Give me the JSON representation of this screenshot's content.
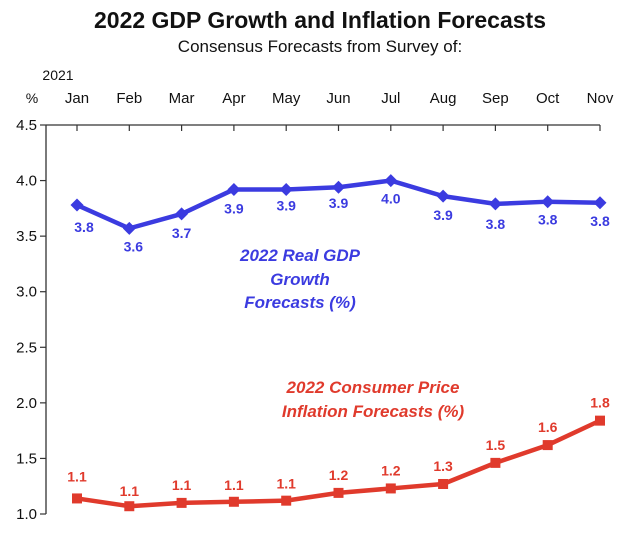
{
  "chart_data": {
    "type": "line",
    "title": "2022 GDP Growth and Inflation Forecasts",
    "subtitle": "Consensus Forecasts from Survey of:",
    "year_label": "2021",
    "ylabel": "%",
    "categories": [
      "Jan",
      "Feb",
      "Mar",
      "Apr",
      "May",
      "Jun",
      "Jul",
      "Aug",
      "Sep",
      "Oct",
      "Nov"
    ],
    "ylim": [
      1.0,
      4.5
    ],
    "yticks": [
      "1.0",
      "1.5",
      "2.0",
      "2.5",
      "3.0",
      "3.5",
      "4.0",
      "4.5"
    ],
    "grid": false,
    "series": [
      {
        "name": "2022 Real GDP Growth Forecasts (%)",
        "name_lines": [
          "2022 Real GDP",
          "Growth",
          "Forecasts  (%)"
        ],
        "color": "#3b3be0",
        "marker": "diamond",
        "values": [
          3.78,
          3.57,
          3.7,
          3.92,
          3.92,
          3.94,
          4.0,
          3.86,
          3.79,
          3.81,
          3.8
        ],
        "labels": [
          "3.8",
          "3.6",
          "3.7",
          "3.9",
          "3.9",
          "3.9",
          "4.0",
          "3.9",
          "3.8",
          "3.8",
          "3.8"
        ]
      },
      {
        "name": "2022 Consumer Price Inflation Forecasts (%)",
        "name_lines": [
          "2022 Consumer Price",
          "Inflation  Forecasts  (%)"
        ],
        "color": "#e03a2c",
        "marker": "square",
        "values": [
          1.14,
          1.07,
          1.1,
          1.11,
          1.12,
          1.19,
          1.23,
          1.27,
          1.46,
          1.62,
          1.84
        ],
        "labels": [
          "1.1",
          "1.1",
          "1.1",
          "1.1",
          "1.1",
          "1.2",
          "1.2",
          "1.3",
          "1.5",
          "1.6",
          "1.8"
        ]
      }
    ]
  }
}
